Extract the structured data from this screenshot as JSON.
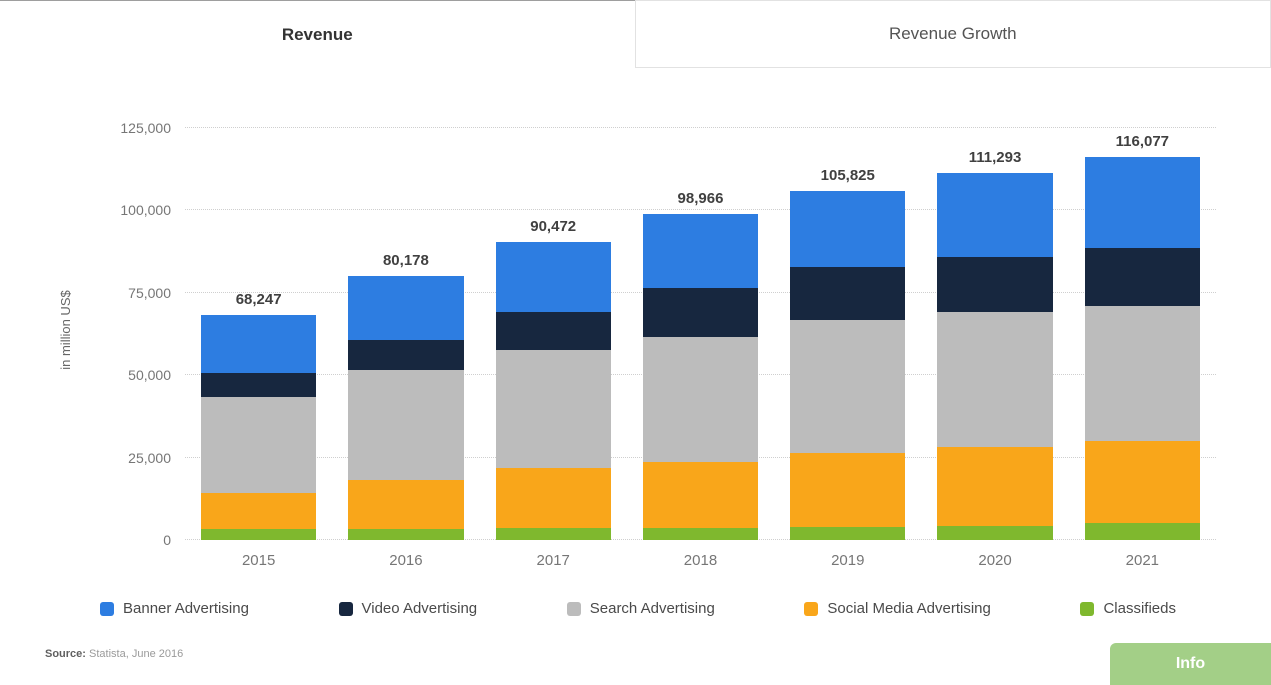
{
  "tabs": [
    {
      "label": "Revenue",
      "active": true
    },
    {
      "label": "Revenue Growth",
      "active": false
    }
  ],
  "chart_data": {
    "type": "bar",
    "stacked": true,
    "title": "",
    "xlabel": "",
    "ylabel": "in million US$",
    "ylim": [
      0,
      125000
    ],
    "yticks": [
      0,
      25000,
      50000,
      75000,
      100000,
      125000
    ],
    "ytick_labels": [
      "0",
      "25,000",
      "50,000",
      "75,000",
      "100,000",
      "125,000"
    ],
    "grid": "dotted-horizontal",
    "legend_position": "bottom",
    "categories": [
      "2015",
      "2016",
      "2017",
      "2018",
      "2019",
      "2020",
      "2021"
    ],
    "series": [
      {
        "name": "Classifieds",
        "color": "#7fb82e",
        "values": [
          3247,
          3478,
          3622,
          3666,
          3925,
          4293,
          5077
        ]
      },
      {
        "name": "Social Media Advertising",
        "color": "#f9a61a",
        "values": [
          11000,
          14700,
          18200,
          20000,
          22500,
          24000,
          25000
        ]
      },
      {
        "name": "Search Advertising",
        "color": "#bcbcbc",
        "values": [
          29000,
          33500,
          35800,
          38000,
          40300,
          41000,
          41000
        ]
      },
      {
        "name": "Video Advertising",
        "color": "#17273f",
        "values": [
          7500,
          9000,
          11550,
          14800,
          16100,
          16600,
          17500
        ]
      },
      {
        "name": "Banner Advertising",
        "color": "#2d7de1",
        "values": [
          17500,
          19500,
          21300,
          22500,
          23000,
          25400,
          27500
        ]
      }
    ],
    "totals": [
      "68,247",
      "80,178",
      "90,472",
      "98,966",
      "105,825",
      "111,293",
      "116,077"
    ],
    "legend": [
      "Banner Advertising",
      "Video Advertising",
      "Search Advertising",
      "Social Media Advertising",
      "Classifieds"
    ]
  },
  "source": {
    "label": "Source:",
    "text": "Statista, June 2016"
  },
  "info_button": {
    "label": "Info",
    "color": "#a3cf87"
  }
}
